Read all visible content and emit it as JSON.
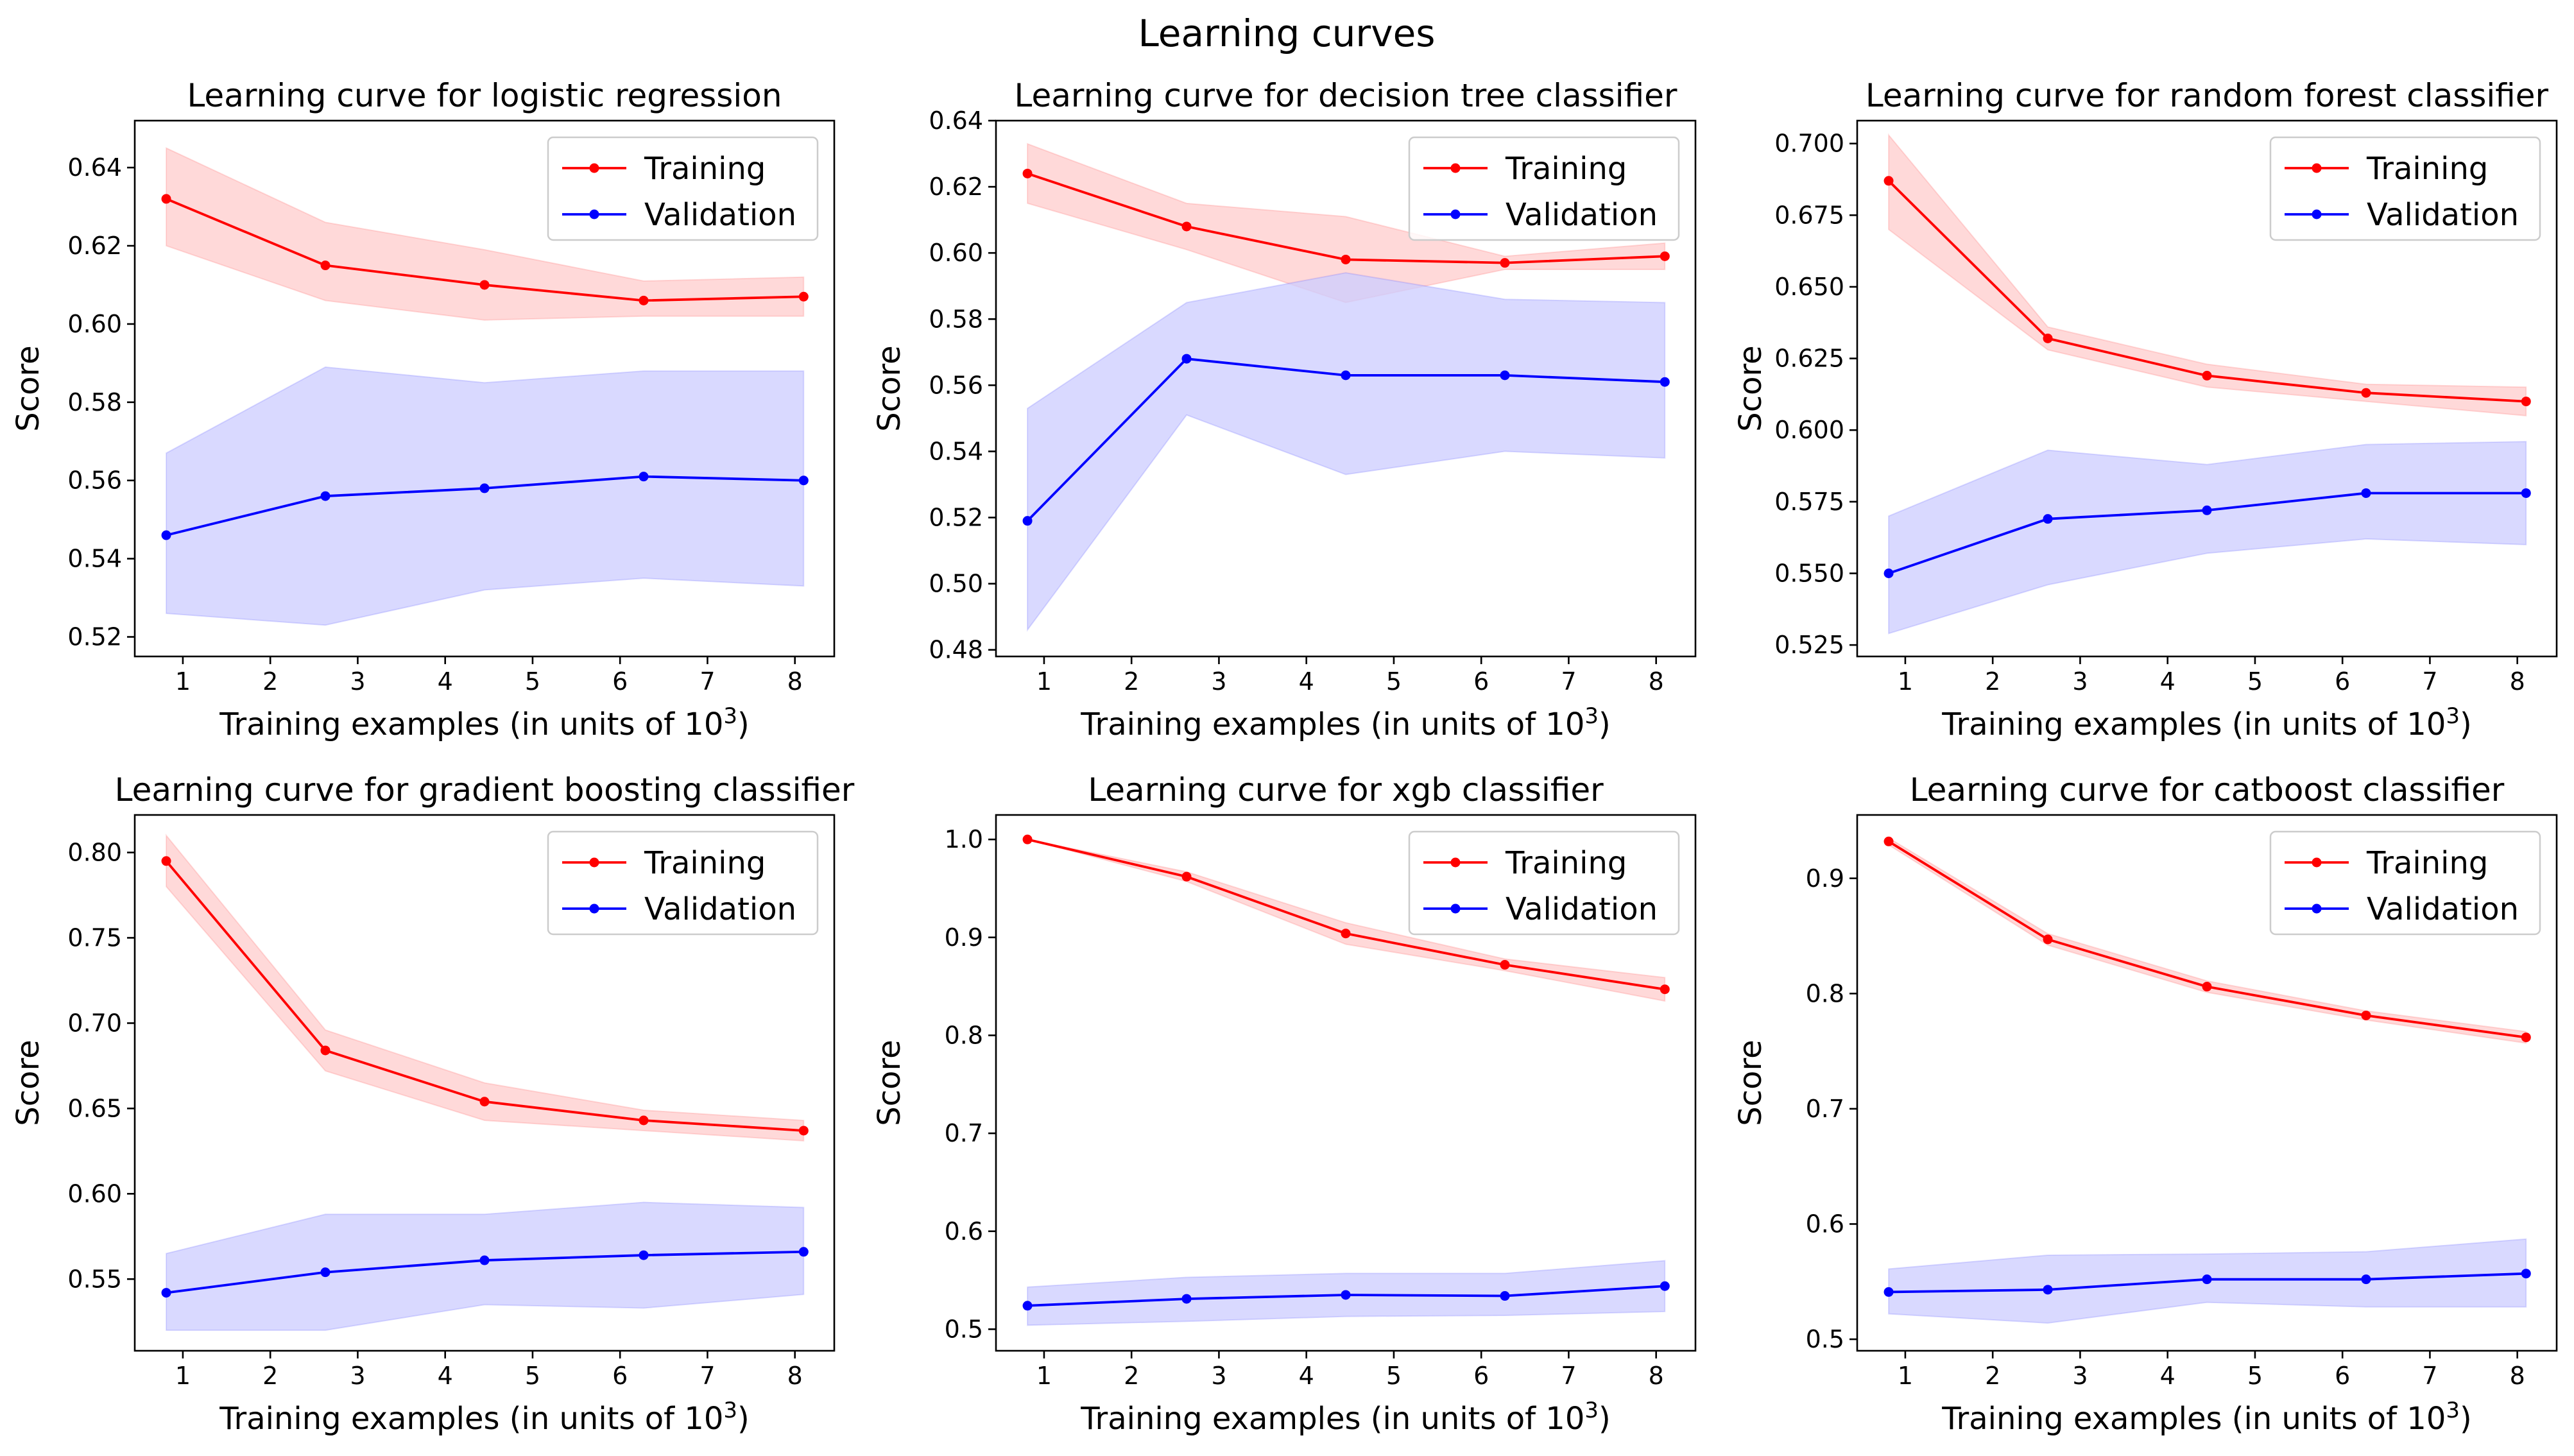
{
  "figure": {
    "title": "Learning curves"
  },
  "chart_data": [
    {
      "type": "line",
      "title": "Learning curve for logistic regression",
      "xlabel": "Training examples (in units of 10",
      "xlabel_sup": "3",
      "xlabel_end": ")",
      "ylabel": "Score",
      "xlim": [
        0.45,
        8.45
      ],
      "ylim": [
        0.515,
        0.652
      ],
      "xticks": [
        1,
        2,
        3,
        4,
        5,
        6,
        7,
        8
      ],
      "yticks": [
        0.52,
        0.54,
        0.56,
        0.58,
        0.6,
        0.62,
        0.64
      ],
      "ytick_labels": [
        "0.52",
        "0.54",
        "0.56",
        "0.58",
        "0.60",
        "0.62",
        "0.64"
      ],
      "legend": "top-right",
      "x": [
        0.81,
        2.63,
        4.45,
        6.27,
        8.1
      ],
      "series": [
        {
          "name": "Training",
          "color": "#ff0000",
          "band_color": "#ffcccc",
          "values": [
            0.632,
            0.615,
            0.61,
            0.606,
            0.607
          ],
          "lower": [
            0.62,
            0.606,
            0.601,
            0.602,
            0.602
          ],
          "upper": [
            0.645,
            0.626,
            0.619,
            0.611,
            0.612
          ]
        },
        {
          "name": "Validation",
          "color": "#0000ff",
          "band_color": "#ccccff",
          "values": [
            0.546,
            0.556,
            0.558,
            0.561,
            0.56
          ],
          "lower": [
            0.526,
            0.523,
            0.532,
            0.535,
            0.533
          ],
          "upper": [
            0.567,
            0.589,
            0.585,
            0.588,
            0.588
          ]
        }
      ]
    },
    {
      "type": "line",
      "title": "Learning curve for decision tree classifier",
      "xlabel": "Training examples (in units of 10",
      "xlabel_sup": "3",
      "xlabel_end": ")",
      "ylabel": "Score",
      "xlim": [
        0.45,
        8.45
      ],
      "ylim": [
        0.478,
        0.64
      ],
      "xticks": [
        1,
        2,
        3,
        4,
        5,
        6,
        7,
        8
      ],
      "yticks": [
        0.48,
        0.5,
        0.52,
        0.54,
        0.56,
        0.58,
        0.6,
        0.62,
        0.64
      ],
      "ytick_labels": [
        "0.48",
        "0.50",
        "0.52",
        "0.54",
        "0.56",
        "0.58",
        "0.60",
        "0.62",
        "0.64"
      ],
      "legend": "top-right",
      "x": [
        0.81,
        2.63,
        4.45,
        6.27,
        8.1
      ],
      "series": [
        {
          "name": "Training",
          "color": "#ff0000",
          "band_color": "#ffcccc",
          "values": [
            0.624,
            0.608,
            0.598,
            0.597,
            0.599
          ],
          "lower": [
            0.615,
            0.601,
            0.585,
            0.595,
            0.595
          ],
          "upper": [
            0.633,
            0.615,
            0.611,
            0.599,
            0.603
          ]
        },
        {
          "name": "Validation",
          "color": "#0000ff",
          "band_color": "#ccccff",
          "values": [
            0.519,
            0.568,
            0.563,
            0.563,
            0.561
          ],
          "lower": [
            0.486,
            0.551,
            0.533,
            0.54,
            0.538
          ],
          "upper": [
            0.553,
            0.585,
            0.594,
            0.586,
            0.585
          ]
        }
      ]
    },
    {
      "type": "line",
      "title": "Learning curve for random forest classifier",
      "xlabel": "Training examples (in units of 10",
      "xlabel_sup": "3",
      "xlabel_end": ")",
      "ylabel": "Score",
      "xlim": [
        0.45,
        8.45
      ],
      "ylim": [
        0.521,
        0.708
      ],
      "xticks": [
        1,
        2,
        3,
        4,
        5,
        6,
        7,
        8
      ],
      "yticks": [
        0.525,
        0.55,
        0.575,
        0.6,
        0.625,
        0.65,
        0.675,
        0.7
      ],
      "ytick_labels": [
        "0.525",
        "0.550",
        "0.575",
        "0.600",
        "0.625",
        "0.650",
        "0.675",
        "0.700"
      ],
      "legend": "top-right",
      "x": [
        0.81,
        2.63,
        4.45,
        6.27,
        8.1
      ],
      "series": [
        {
          "name": "Training",
          "color": "#ff0000",
          "band_color": "#ffcccc",
          "values": [
            0.687,
            0.632,
            0.619,
            0.613,
            0.61
          ],
          "lower": [
            0.67,
            0.628,
            0.615,
            0.61,
            0.605
          ],
          "upper": [
            0.703,
            0.636,
            0.623,
            0.616,
            0.615
          ]
        },
        {
          "name": "Validation",
          "color": "#0000ff",
          "band_color": "#ccccff",
          "values": [
            0.55,
            0.569,
            0.572,
            0.578,
            0.578
          ],
          "lower": [
            0.529,
            0.546,
            0.557,
            0.562,
            0.56
          ],
          "upper": [
            0.57,
            0.593,
            0.588,
            0.595,
            0.596
          ]
        }
      ]
    },
    {
      "type": "line",
      "title": "Learning curve for gradient boosting classifier",
      "xlabel": "Training examples (in units of 10",
      "xlabel_sup": "3",
      "xlabel_end": ")",
      "ylabel": "Score",
      "xlim": [
        0.45,
        8.45
      ],
      "ylim": [
        0.508,
        0.822
      ],
      "xticks": [
        1,
        2,
        3,
        4,
        5,
        6,
        7,
        8
      ],
      "yticks": [
        0.55,
        0.6,
        0.65,
        0.7,
        0.75,
        0.8
      ],
      "ytick_labels": [
        "0.55",
        "0.60",
        "0.65",
        "0.70",
        "0.75",
        "0.80"
      ],
      "legend": "top-right",
      "x": [
        0.81,
        2.63,
        4.45,
        6.27,
        8.1
      ],
      "series": [
        {
          "name": "Training",
          "color": "#ff0000",
          "band_color": "#ffcccc",
          "values": [
            0.795,
            0.684,
            0.654,
            0.643,
            0.637
          ],
          "lower": [
            0.78,
            0.672,
            0.643,
            0.637,
            0.631
          ],
          "upper": [
            0.81,
            0.696,
            0.665,
            0.649,
            0.643
          ]
        },
        {
          "name": "Validation",
          "color": "#0000ff",
          "band_color": "#ccccff",
          "values": [
            0.542,
            0.554,
            0.561,
            0.564,
            0.566
          ],
          "lower": [
            0.52,
            0.52,
            0.535,
            0.533,
            0.541
          ],
          "upper": [
            0.565,
            0.588,
            0.588,
            0.595,
            0.592
          ]
        }
      ]
    },
    {
      "type": "line",
      "title": "Learning curve for xgb classifier",
      "xlabel": "Training examples (in units of 10",
      "xlabel_sup": "3",
      "xlabel_end": ")",
      "ylabel": "Score",
      "xlim": [
        0.45,
        8.45
      ],
      "ylim": [
        0.478,
        1.025
      ],
      "xticks": [
        1,
        2,
        3,
        4,
        5,
        6,
        7,
        8
      ],
      "yticks": [
        0.5,
        0.6,
        0.7,
        0.8,
        0.9,
        1.0
      ],
      "ytick_labels": [
        "0.5",
        "0.6",
        "0.7",
        "0.8",
        "0.9",
        "1.0"
      ],
      "legend": "top-right",
      "x": [
        0.81,
        2.63,
        4.45,
        6.27,
        8.1
      ],
      "series": [
        {
          "name": "Training",
          "color": "#ff0000",
          "band_color": "#ffcccc",
          "values": [
            1.0,
            0.962,
            0.904,
            0.872,
            0.847
          ],
          "lower": [
            1.0,
            0.957,
            0.893,
            0.866,
            0.835
          ],
          "upper": [
            1.0,
            0.967,
            0.915,
            0.878,
            0.859
          ]
        },
        {
          "name": "Validation",
          "color": "#0000ff",
          "band_color": "#ccccff",
          "values": [
            0.524,
            0.531,
            0.535,
            0.534,
            0.544
          ],
          "lower": [
            0.504,
            0.508,
            0.513,
            0.514,
            0.518
          ],
          "upper": [
            0.543,
            0.553,
            0.557,
            0.557,
            0.57
          ]
        }
      ]
    },
    {
      "type": "line",
      "title": "Learning curve for catboost classifier",
      "xlabel": "Training examples (in units of 10",
      "xlabel_sup": "3",
      "xlabel_end": ")",
      "ylabel": "Score",
      "xlim": [
        0.45,
        8.45
      ],
      "ylim": [
        0.49,
        0.955
      ],
      "xticks": [
        1,
        2,
        3,
        4,
        5,
        6,
        7,
        8
      ],
      "yticks": [
        0.5,
        0.6,
        0.7,
        0.8,
        0.9
      ],
      "ytick_labels": [
        "0.5",
        "0.6",
        "0.7",
        "0.8",
        "0.9"
      ],
      "legend": "top-right",
      "x": [
        0.81,
        2.63,
        4.45,
        6.27,
        8.1
      ],
      "series": [
        {
          "name": "Training",
          "color": "#ff0000",
          "band_color": "#ffcccc",
          "values": [
            0.932,
            0.847,
            0.806,
            0.781,
            0.762
          ],
          "lower": [
            0.929,
            0.842,
            0.801,
            0.777,
            0.757
          ],
          "upper": [
            0.935,
            0.852,
            0.811,
            0.785,
            0.767
          ]
        },
        {
          "name": "Validation",
          "color": "#0000ff",
          "band_color": "#ccccff",
          "values": [
            0.541,
            0.543,
            0.552,
            0.552,
            0.557
          ],
          "lower": [
            0.522,
            0.514,
            0.532,
            0.528,
            0.528
          ],
          "upper": [
            0.561,
            0.573,
            0.574,
            0.576,
            0.587
          ]
        }
      ]
    }
  ]
}
